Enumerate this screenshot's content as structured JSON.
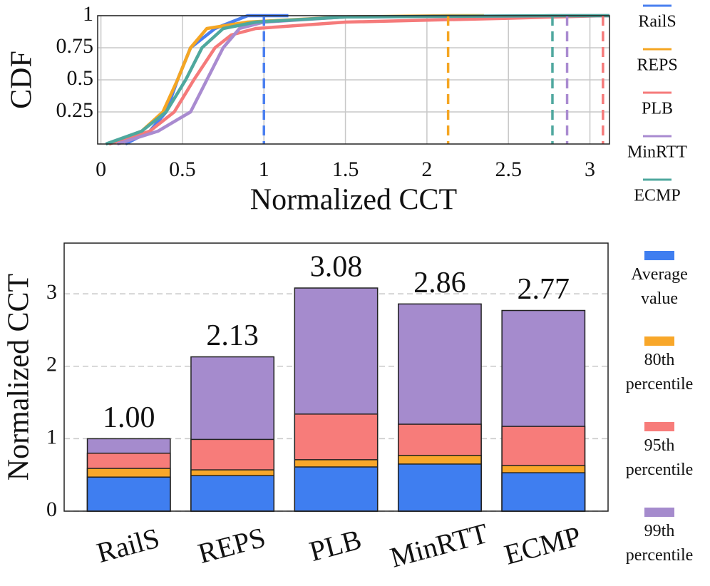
{
  "chart_data": [
    {
      "type": "line",
      "xlabel": "Normalized CCT",
      "ylabel": "CDF",
      "xlim": [
        -0.02,
        3.12
      ],
      "ylim": [
        0,
        1
      ],
      "xticks": [
        0,
        0.5,
        1,
        1.5,
        2,
        2.5,
        3
      ],
      "yticks": [
        0.25,
        0.5,
        0.75,
        1
      ],
      "grid": true,
      "series": [
        {
          "name": "RailS",
          "color": "#4a7ff0",
          "x": [
            0.15,
            0.3,
            0.4,
            0.47,
            0.55,
            0.7,
            0.8,
            0.9,
            1.15
          ],
          "values": [
            0,
            0.1,
            0.25,
            0.5,
            0.75,
            0.9,
            0.95,
            1,
            1
          ],
          "max": 1.0
        },
        {
          "name": "REPS",
          "color": "#f5a623",
          "x": [
            0.05,
            0.25,
            0.38,
            0.47,
            0.55,
            0.65,
            0.9,
            1.5,
            2.13,
            2.35
          ],
          "values": [
            0,
            0.1,
            0.25,
            0.5,
            0.75,
            0.9,
            0.95,
            0.99,
            1,
            1
          ],
          "max": 2.13
        },
        {
          "name": "PLB",
          "color": "#f57a7a",
          "x": [
            0.05,
            0.3,
            0.45,
            0.57,
            0.7,
            0.8,
            0.95,
            1.5,
            2.5,
            3.08,
            3.12
          ],
          "values": [
            0,
            0.1,
            0.25,
            0.5,
            0.75,
            0.85,
            0.9,
            0.95,
            0.98,
            1,
            1
          ],
          "max": 3.08
        },
        {
          "name": "MinRTT",
          "color": "#a98bd0",
          "x": [
            0.1,
            0.35,
            0.55,
            0.65,
            0.75,
            0.85,
            1.0,
            1.5,
            2.86,
            3.12
          ],
          "values": [
            0,
            0.1,
            0.25,
            0.5,
            0.75,
            0.9,
            0.95,
            0.99,
            1,
            1
          ],
          "max": 2.86
        },
        {
          "name": "ECMP",
          "color": "#4fa89e",
          "x": [
            0.03,
            0.25,
            0.4,
            0.52,
            0.62,
            0.75,
            0.95,
            1.5,
            2.77,
            3.12
          ],
          "values": [
            0,
            0.1,
            0.25,
            0.5,
            0.75,
            0.9,
            0.95,
            0.99,
            1,
            1
          ],
          "max": 2.77
        }
      ]
    },
    {
      "type": "bar",
      "ylabel": "Normalized CCT",
      "overlap": true,
      "categories": [
        "RailS",
        "REPS",
        "PLB",
        "MinRTT",
        "ECMP"
      ],
      "ylim": [
        0,
        3.7
      ],
      "yticks": [
        0,
        1,
        2,
        3
      ],
      "grid": true,
      "series": [
        {
          "name": "Average value",
          "color": "#3f7ef0",
          "values": [
            0.47,
            0.49,
            0.61,
            0.65,
            0.53
          ]
        },
        {
          "name": "80th percentile",
          "color": "#f8a72a",
          "values": [
            0.59,
            0.57,
            0.71,
            0.77,
            0.63
          ]
        },
        {
          "name": "95th percentile",
          "color": "#f77c7a",
          "values": [
            0.8,
            0.99,
            1.34,
            1.2,
            1.17
          ]
        },
        {
          "name": "99th percentile",
          "color": "#a58bcd",
          "values": [
            1.0,
            2.13,
            3.08,
            2.86,
            2.77
          ],
          "value_labels": [
            "1.00",
            "2.13",
            "3.08",
            "2.86",
            "2.77"
          ]
        }
      ]
    }
  ]
}
